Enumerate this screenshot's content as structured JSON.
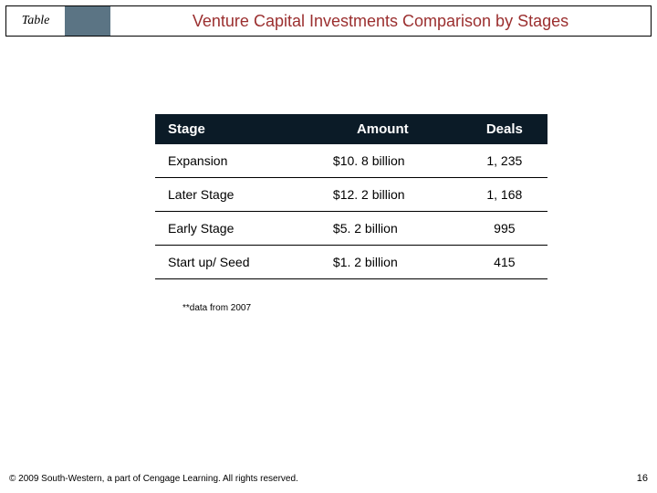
{
  "header": {
    "tab_label": "Table",
    "title": "Venture Capital Investments Comparison by Stages"
  },
  "colors": {
    "header_spacer_bg": "#5b7484",
    "table_header_bg": "#0b1b27",
    "header_title_color": "#9b2f2f"
  },
  "table": {
    "columns": [
      "Stage",
      "Amount",
      "Deals"
    ],
    "rows": [
      [
        "Expansion",
        "$10. 8 billion",
        "1, 235"
      ],
      [
        "Later Stage",
        "$12. 2 billion",
        "1, 168"
      ],
      [
        "Early Stage",
        "$5. 2 billion",
        "995"
      ],
      [
        "Start up/ Seed",
        "$1. 2 billion",
        "415"
      ]
    ]
  },
  "footnote": "**data from 2007",
  "copyright": "© 2009 South-Western, a part of Cengage Learning. All rights reserved.",
  "page_number": "16"
}
